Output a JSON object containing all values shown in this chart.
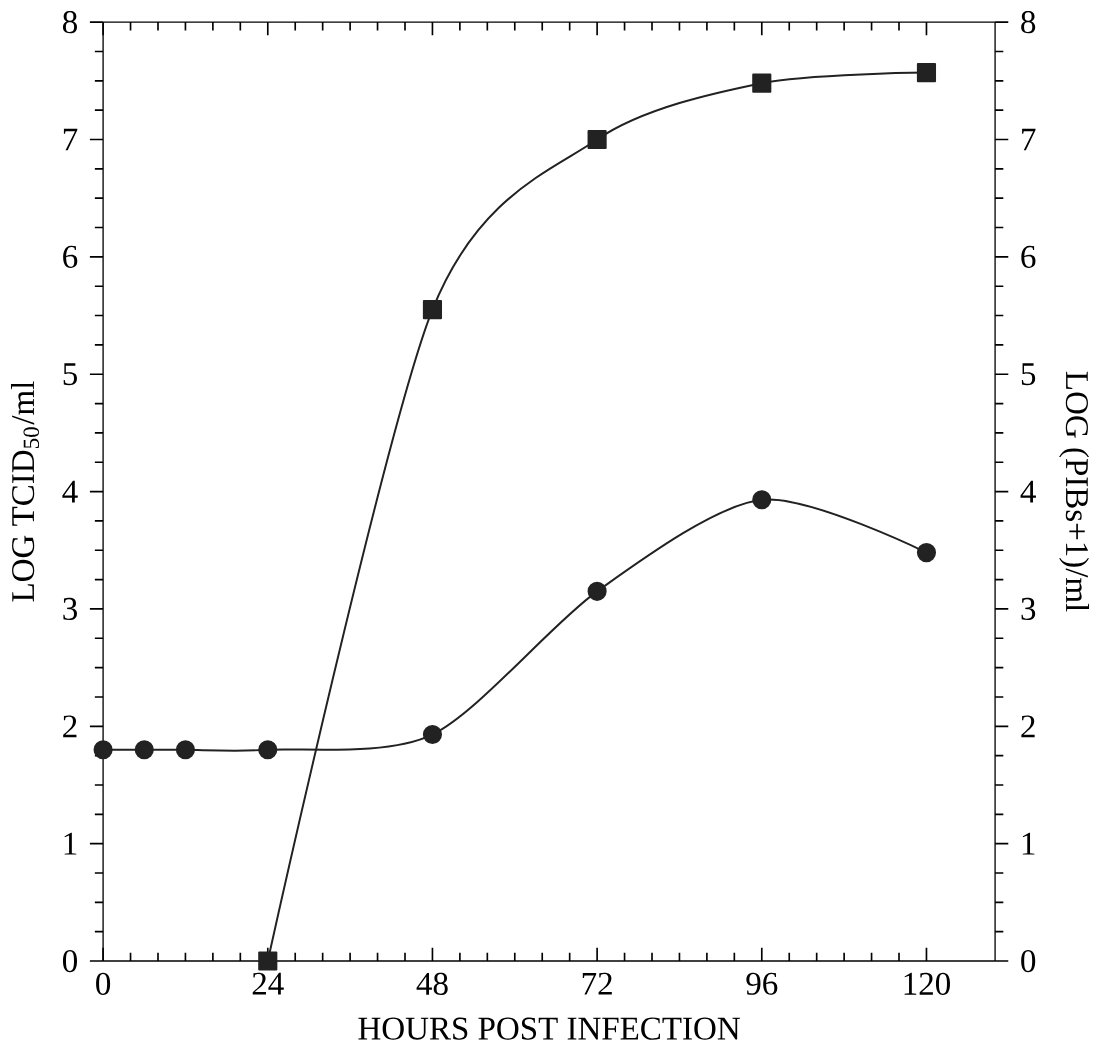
{
  "chart_data": {
    "type": "line",
    "xlabel": "HOURS POST INFECTION",
    "ylabel": "LOG TCID$_{50}$/ml",
    "y2label": "LOG (PIBs+1)/ml",
    "xlim": [
      0,
      130
    ],
    "xticks": [
      0,
      24,
      48,
      72,
      96,
      120
    ],
    "ylim": [
      0,
      8
    ],
    "yticks": [
      0,
      1,
      2,
      3,
      4,
      5,
      6,
      7,
      8
    ],
    "y2lim": [
      0,
      8
    ],
    "y2ticks": [
      0,
      1,
      2,
      3,
      4,
      5,
      6,
      7,
      8
    ],
    "grid": false,
    "series": [
      {
        "color": "#222222",
        "marker": "square",
        "axis": "y",
        "x": [
          24,
          48,
          72,
          96,
          120
        ],
        "values": [
          0,
          5.55,
          7.0,
          7.48,
          7.57
        ]
      },
      {
        "color": "#222222",
        "marker": "circle",
        "axis": "y2",
        "x": [
          0,
          6,
          12,
          24,
          48,
          72,
          96,
          120
        ],
        "values": [
          1.8,
          1.8,
          1.8,
          1.8,
          1.93,
          3.15,
          3.93,
          3.48
        ]
      }
    ]
  }
}
